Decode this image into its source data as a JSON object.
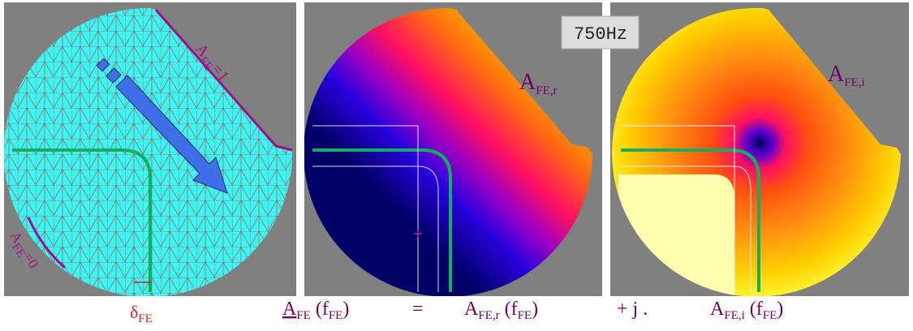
{
  "panel_1": {
    "boundary_top": {
      "main": "A",
      "sub": "FE",
      "rest": "=1"
    },
    "boundary_bottom": {
      "main": "A",
      "sub": "FE",
      "rest": "=0"
    },
    "delta": {
      "main": "δ",
      "sub": "FE"
    }
  },
  "frequency": "750Hz",
  "panel_2": {
    "label": {
      "main": "A",
      "sub": "FE,r"
    }
  },
  "panel_3": {
    "label": {
      "main": "A",
      "sub": "FE,i"
    }
  },
  "equation": {
    "terms": [
      {
        "main": "A",
        "sub": "FE",
        "arg_open": "(f",
        "arg_sub": "FE",
        "arg_close": ")"
      },
      {
        "main": "A",
        "sub": "FE,r",
        "arg_open": "(f",
        "arg_sub": "FE",
        "arg_close": ")"
      },
      {
        "main": "A",
        "sub": "FE,i",
        "arg_open": "(f",
        "arg_sub": "FE",
        "arg_close": ")"
      }
    ],
    "operators": [
      "=",
      "+ j ."
    ]
  }
}
